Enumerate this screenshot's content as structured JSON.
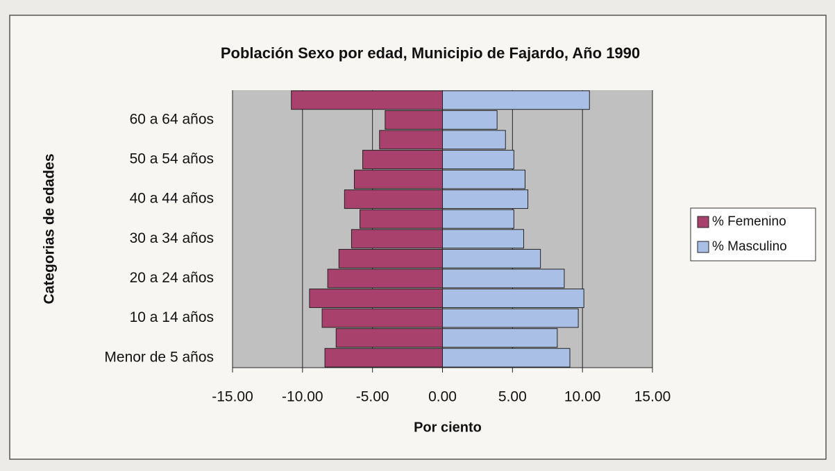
{
  "chart_data": {
    "type": "bar",
    "orientation": "horizontal",
    "stacked": true,
    "title": "Población Sexo por edad, Municipio de Fajardo, Año 1990",
    "x_label": "Por ciento",
    "y_label": "Categorias de edades",
    "categories": [
      "Menor de 5 años",
      null,
      "10 a 14 años",
      null,
      "20 a 24 años",
      null,
      "30 a 34 años",
      null,
      "40 a 44 años",
      null,
      "50 a 54 años",
      null,
      "60 a 64 años",
      null
    ],
    "series": [
      {
        "name": "% Femenino",
        "color": "#a8416b",
        "values": [
          -8.4,
          -7.6,
          -8.6,
          -9.5,
          -8.2,
          -7.4,
          -6.5,
          -5.9,
          -7.0,
          -6.3,
          -5.7,
          -4.5,
          -4.1,
          -10.8
        ]
      },
      {
        "name": "% Masculino",
        "color": "#a9bfe6",
        "values": [
          9.1,
          8.2,
          9.7,
          10.1,
          8.7,
          7.0,
          5.8,
          5.1,
          6.1,
          5.9,
          5.1,
          4.5,
          3.9,
          10.5
        ]
      }
    ],
    "xlim": [
      -15,
      15
    ],
    "xticks": [
      {
        "value": -15,
        "label": "-15.00"
      },
      {
        "value": -10,
        "label": "-10.00"
      },
      {
        "value": -5,
        "label": "-5.00"
      },
      {
        "value": 0,
        "label": "0.00"
      },
      {
        "value": 5,
        "label": "5.00"
      },
      {
        "value": 10,
        "label": "10.00"
      },
      {
        "value": 15,
        "label": "15.00"
      }
    ],
    "grid": true,
    "legend": "right"
  }
}
